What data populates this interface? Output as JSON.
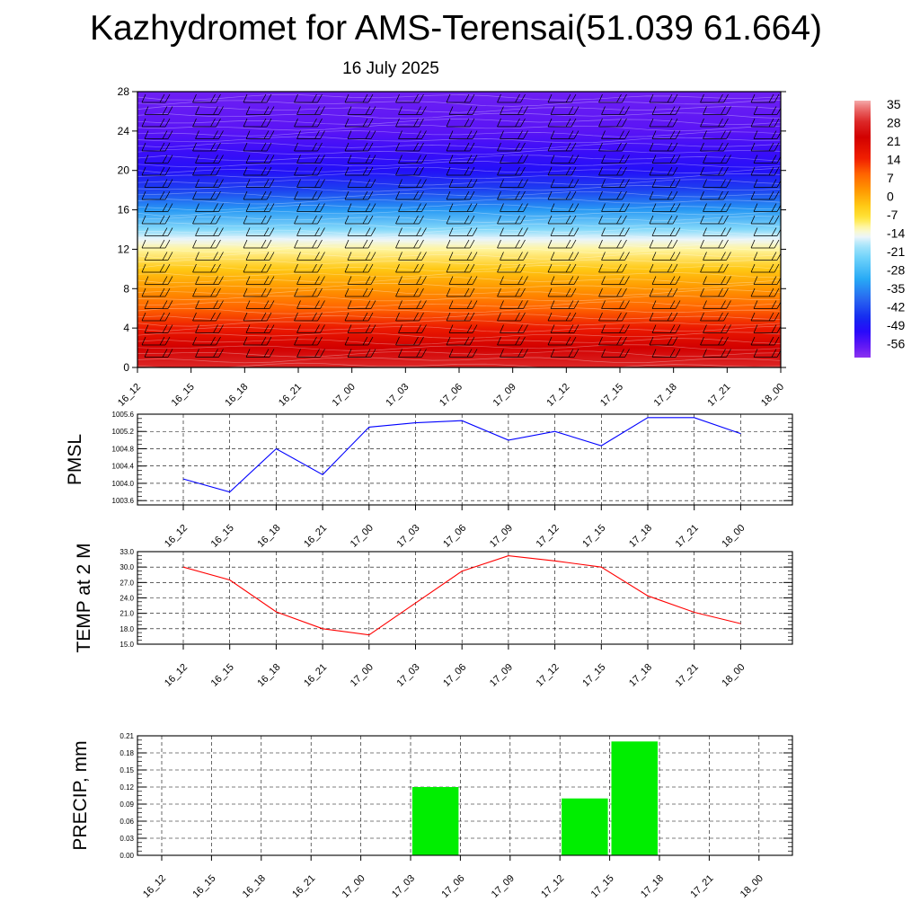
{
  "header": {
    "title": "Kazhydromet for AMS-Terensai(51.039 61.664)",
    "date": "16 July 2025"
  },
  "time_labels": [
    "16_12",
    "16_15",
    "16_18",
    "16_21",
    "17_00",
    "17_03",
    "17_06",
    "17_09",
    "17_12",
    "17_15",
    "17_18",
    "17_21",
    "18_00"
  ],
  "colors": {
    "pmsl_line": "#0000ff",
    "temp_line": "#ff0000",
    "precip_bar": "#00ee00",
    "grid": "#000000"
  },
  "chart_data": [
    {
      "type": "heatmap",
      "title": "",
      "xlabel": "",
      "ylabel": "",
      "yticks": [
        0,
        4,
        8,
        12,
        16,
        20,
        24,
        28
      ],
      "ylim": [
        0,
        28
      ],
      "x": [
        "16_12",
        "16_15",
        "16_18",
        "16_21",
        "17_00",
        "17_03",
        "17_06",
        "17_09",
        "17_12",
        "17_15",
        "17_18",
        "17_21",
        "18_00"
      ],
      "vertical_temperature_profile": {
        "levels": [
          0,
          2,
          4,
          6,
          8,
          10,
          12,
          13,
          14,
          16,
          18,
          20,
          22,
          24,
          26,
          28
        ],
        "temperature": [
          30,
          24,
          17,
          10,
          4,
          -2,
          -10,
          -14,
          -20,
          -32,
          -42,
          -49,
          -52,
          -55,
          -56,
          -57
        ]
      },
      "colorbar": {
        "labels": [
          "35",
          "28",
          "21",
          "14",
          "7",
          "0",
          "-7",
          "-14",
          "-21",
          "-28",
          "-35",
          "-42",
          "-49",
          "-56"
        ],
        "range": [
          -60,
          38
        ]
      },
      "wind_barbs": true
    },
    {
      "type": "line",
      "ylabel": "PMSL",
      "x": [
        "16_12",
        "16_15",
        "16_18",
        "16_21",
        "17_00",
        "17_03",
        "17_06",
        "17_09",
        "17_12",
        "17_15",
        "17_18",
        "17_21",
        "18_00"
      ],
      "values": [
        1004.1,
        1003.8,
        1004.8,
        1004.2,
        1005.3,
        1005.4,
        1005.45,
        1005.0,
        1005.2,
        1004.87,
        1005.52,
        1005.52,
        1005.15
      ],
      "ylim": [
        1003.5,
        1005.6
      ],
      "yticks": [
        "1003.6",
        "1004.0",
        "1004.4",
        "1004.8",
        "1005.2",
        "1005.6"
      ],
      "grid": true
    },
    {
      "type": "line",
      "ylabel": "TEMP at 2 M",
      "x": [
        "16_12",
        "16_15",
        "16_18",
        "16_21",
        "17_00",
        "17_03",
        "17_06",
        "17_09",
        "17_12",
        "17_15",
        "17_18",
        "17_21",
        "18_00"
      ],
      "values": [
        30.0,
        27.5,
        21.3,
        18.0,
        16.8,
        23.0,
        29.2,
        32.2,
        31.2,
        30.0,
        24.4,
        21.2,
        19.0
      ],
      "ylim": [
        15.0,
        33.0
      ],
      "yticks": [
        "15.0",
        "18.0",
        "21.0",
        "24.0",
        "27.0",
        "30.0",
        "33.0"
      ],
      "grid": true
    },
    {
      "type": "bar",
      "ylabel": "PRECIP, mm",
      "categories": [
        "16_12",
        "16_15",
        "16_18",
        "16_21",
        "17_00",
        "17_03",
        "17_06",
        "17_09",
        "17_12",
        "17_15",
        "17_18",
        "17_21",
        "18_00"
      ],
      "values": [
        0,
        0,
        0,
        0,
        0,
        0.12,
        0,
        0,
        0.1,
        0.2,
        0,
        0,
        0
      ],
      "ylim": [
        0,
        0.21
      ],
      "yticks": [
        "0.00",
        "0.03",
        "0.06",
        "0.09",
        "0.12",
        "0.15",
        "0.18",
        "0.21"
      ],
      "grid": true
    }
  ]
}
